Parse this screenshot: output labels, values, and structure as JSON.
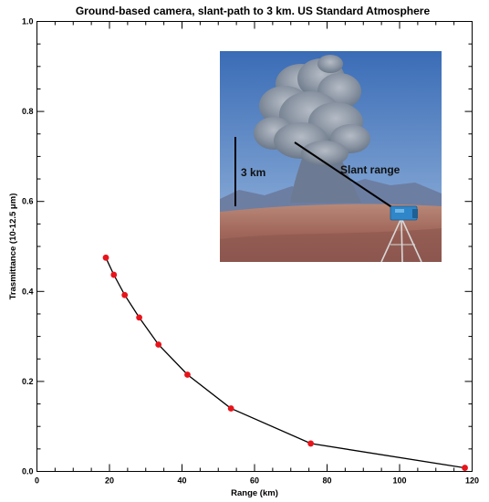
{
  "chart_data": {
    "type": "line",
    "title": "Ground-based camera, slant-path to 3 km.  US Standard Atmosphere",
    "xlabel": "Range (km)",
    "ylabel": "Trasmittance (10-12.5 μm)",
    "xlim": [
      0,
      120
    ],
    "ylim": [
      0.0,
      1.0
    ],
    "x_ticks": [
      "0",
      "20",
      "40",
      "60",
      "80",
      "100",
      "120"
    ],
    "y_ticks": [
      "0.0",
      "0.2",
      "0.4",
      "0.6",
      "0.8",
      "1.0"
    ],
    "grid": false,
    "series": [
      {
        "x": [
          19,
          21.2,
          24.2,
          28.2,
          33.5,
          41.5,
          53.5,
          75.5,
          118
        ],
        "y": [
          0.475,
          0.437,
          0.392,
          0.342,
          0.282,
          0.215,
          0.14,
          0.062,
          0.008
        ],
        "line_color": "#000000",
        "marker_color": "#e8141b"
      }
    ]
  },
  "inset": {
    "description": "Photo of volcanic ash plume rising over a desert with a blue camera on a tripod",
    "labels": {
      "height": "3 km",
      "slant": "Slant range"
    },
    "colors": {
      "sky_top": "#3b6fb8",
      "sky_bottom": "#8fb0d8",
      "plume": "#8e9aa8",
      "ground": "#a1695a",
      "camera": "#2f86c8"
    }
  }
}
